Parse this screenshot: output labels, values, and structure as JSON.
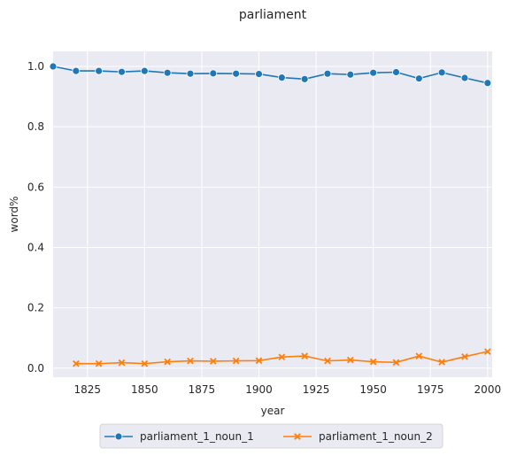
{
  "chart_data": {
    "type": "line",
    "title": "parliament",
    "xlabel": "year",
    "ylabel": "word%",
    "xlim": [
      1810,
      2002
    ],
    "ylim": [
      -0.03,
      1.05
    ],
    "xticks": [
      1825,
      1850,
      1875,
      1900,
      1925,
      1950,
      1975,
      2000
    ],
    "yticks": [
      0.0,
      0.2,
      0.4,
      0.6,
      0.8,
      1.0
    ],
    "grid": true,
    "legend_position": "bottom-center",
    "series": [
      {
        "name": "parliament_1_noun_1",
        "color": "#1f77b4",
        "marker": "circle",
        "x": [
          1810,
          1820,
          1830,
          1840,
          1850,
          1860,
          1870,
          1880,
          1890,
          1900,
          1910,
          1920,
          1930,
          1940,
          1950,
          1960,
          1970,
          1980,
          1990,
          2000
        ],
        "y": [
          1.0,
          0.985,
          0.985,
          0.982,
          0.985,
          0.979,
          0.976,
          0.977,
          0.976,
          0.975,
          0.963,
          0.958,
          0.976,
          0.973,
          0.979,
          0.981,
          0.96,
          0.98,
          0.962,
          0.945
        ]
      },
      {
        "name": "parliament_1_noun_2",
        "color": "#ff7f0e",
        "marker": "x",
        "x": [
          1820,
          1830,
          1840,
          1850,
          1860,
          1870,
          1880,
          1890,
          1900,
          1910,
          1920,
          1930,
          1940,
          1950,
          1960,
          1970,
          1980,
          1990,
          2000
        ],
        "y": [
          0.015,
          0.015,
          0.018,
          0.015,
          0.021,
          0.024,
          0.023,
          0.024,
          0.025,
          0.037,
          0.04,
          0.024,
          0.027,
          0.021,
          0.019,
          0.04,
          0.02,
          0.038,
          0.055
        ]
      }
    ]
  }
}
